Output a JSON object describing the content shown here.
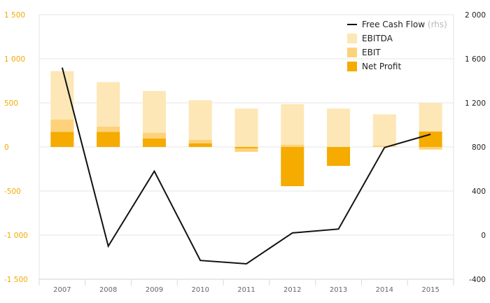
{
  "chart_data": {
    "type": "bar",
    "categories": [
      "2007",
      "2008",
      "2009",
      "2010",
      "2011",
      "2012",
      "2013",
      "2014",
      "2015"
    ],
    "series": [
      {
        "name": "EBITDA",
        "type": "bar",
        "axis": "left",
        "color": "#fde7b6",
        "values": [
          860,
          735,
          635,
          530,
          435,
          485,
          435,
          370,
          500
        ]
      },
      {
        "name": "EBIT",
        "type": "bar",
        "axis": "left",
        "color": "#fdd27a",
        "values": [
          310,
          230,
          160,
          80,
          -55,
          25,
          -10,
          15,
          -30
        ]
      },
      {
        "name": "Net Profit",
        "type": "bar",
        "axis": "left",
        "color": "#f5ab00",
        "values": [
          170,
          170,
          95,
          40,
          -15,
          -445,
          -215,
          0,
          175
        ]
      },
      {
        "name": "Free Cash Flow",
        "name_suffix": "(rhs)",
        "type": "line",
        "axis": "right",
        "color": "#111111",
        "values": [
          1520,
          -100,
          580,
          -230,
          -260,
          20,
          55,
          795,
          915
        ]
      }
    ],
    "y_left": {
      "min": -1500,
      "max": 1500,
      "ticks": [
        1500,
        1000,
        500,
        0,
        -500,
        -1000,
        -1500
      ],
      "tick_labels": [
        "1 500",
        "1 000",
        "500",
        "0",
        "-500",
        "-1 000",
        "-1 500"
      ]
    },
    "y_right": {
      "min": -400,
      "max": 2000,
      "ticks": [
        2000,
        1600,
        1200,
        800,
        400,
        0,
        -400
      ],
      "tick_labels": [
        "2 000",
        "1 600",
        "1 200",
        "800",
        "400",
        "0",
        "-400"
      ]
    },
    "grid": true,
    "legend_position": "top-right",
    "colors": {
      "grid": "#e6e6e6",
      "left_axis_text": "#f2a900",
      "right_axis_text": "#222222",
      "x_axis_text": "#666666"
    }
  }
}
